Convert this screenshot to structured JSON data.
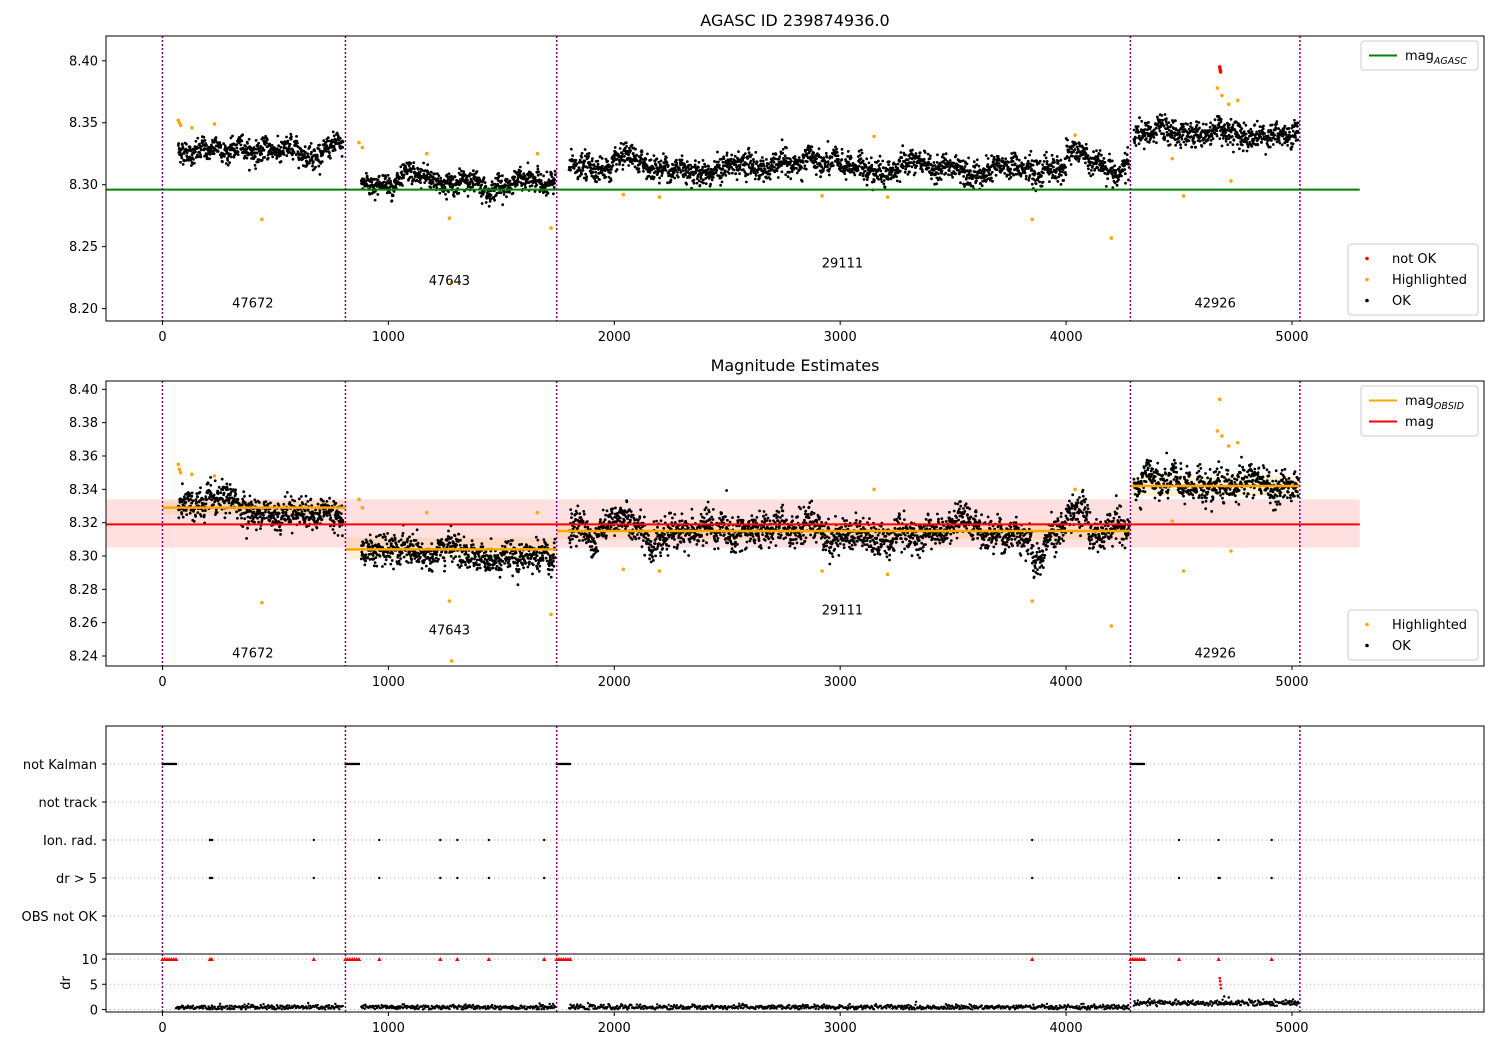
{
  "chart_data": [
    {
      "type": "scatter",
      "title": "AGASC ID 239874936.0",
      "xlim": [
        -250,
        5850
      ],
      "ylim": [
        8.19,
        8.42
      ],
      "xticks": [
        0,
        1000,
        2000,
        3000,
        4000,
        5000
      ],
      "yticks": [
        8.2,
        8.25,
        8.3,
        8.35,
        8.4
      ],
      "obsid_boundaries": [
        0,
        810,
        1745,
        4285,
        5035
      ],
      "obsid_labels": [
        {
          "label": "47672",
          "x": 400,
          "y": 8.201
        },
        {
          "label": "47643",
          "x": 1270,
          "y": 8.219
        },
        {
          "label": "29111",
          "x": 3010,
          "y": 8.233
        },
        {
          "label": "42926",
          "x": 4660,
          "y": 8.201
        }
      ],
      "reference_lines": [
        {
          "name": "mag_AGASC",
          "color": "#008000",
          "y": 8.296,
          "x": [
            -250,
            5300
          ]
        }
      ],
      "segments": [
        {
          "x": [
            70,
            800
          ],
          "level": 8.328,
          "spread": 0.006
        },
        {
          "x": [
            880,
            1740
          ],
          "level": 8.302,
          "spread": 0.006
        },
        {
          "x": [
            1800,
            4280
          ],
          "level": 8.314,
          "spread": 0.007
        },
        {
          "x": [
            4300,
            5030
          ],
          "level": 8.341,
          "spread": 0.007
        }
      ],
      "highlighted_points": [
        [
          70,
          8.352
        ],
        [
          75,
          8.35
        ],
        [
          80,
          8.348
        ],
        [
          130,
          8.346
        ],
        [
          230,
          8.349
        ],
        [
          440,
          8.272
        ],
        [
          870,
          8.334
        ],
        [
          885,
          8.33
        ],
        [
          1170,
          8.325
        ],
        [
          1270,
          8.273
        ],
        [
          1280,
          8.221
        ],
        [
          1660,
          8.325
        ],
        [
          1720,
          8.265
        ],
        [
          2040,
          8.292
        ],
        [
          2200,
          8.29
        ],
        [
          2920,
          8.291
        ],
        [
          3150,
          8.339
        ],
        [
          3210,
          8.29
        ],
        [
          3850,
          8.272
        ],
        [
          4040,
          8.34
        ],
        [
          4200,
          8.257
        ],
        [
          4470,
          8.321
        ],
        [
          4520,
          8.291
        ],
        [
          4670,
          8.378
        ],
        [
          4690,
          8.372
        ],
        [
          4720,
          8.365
        ],
        [
          4730,
          8.303
        ],
        [
          4760,
          8.368
        ]
      ],
      "not_ok_points": [
        [
          4680,
          8.395
        ],
        [
          4682,
          8.393
        ],
        [
          4684,
          8.391
        ]
      ],
      "legends": [
        {
          "position": "top-right",
          "items": [
            {
              "label": "mag",
              "sub": "AGASC",
              "color": "#008000",
              "kind": "line"
            }
          ]
        },
        {
          "position": "bottom-right",
          "items": [
            {
              "label": "not OK",
              "color": "#ff0000",
              "kind": "dot"
            },
            {
              "label": "Highlighted",
              "color": "#ffa500",
              "kind": "dot"
            },
            {
              "label": "OK",
              "color": "#000000",
              "kind": "dot"
            }
          ]
        }
      ]
    },
    {
      "type": "scatter",
      "title": "Magnitude Estimates",
      "xlim": [
        -250,
        5850
      ],
      "ylim": [
        8.234,
        8.405
      ],
      "xticks": [
        0,
        1000,
        2000,
        3000,
        4000,
        5000
      ],
      "yticks": [
        8.24,
        8.26,
        8.28,
        8.3,
        8.32,
        8.34,
        8.36,
        8.38,
        8.4
      ],
      "obsid_boundaries": [
        0,
        810,
        1745,
        4285,
        5035
      ],
      "obsid_labels": [
        {
          "label": "47672",
          "x": 400,
          "y": 8.239
        },
        {
          "label": "47643",
          "x": 1270,
          "y": 8.253
        },
        {
          "label": "29111",
          "x": 3010,
          "y": 8.265
        },
        {
          "label": "42926",
          "x": 4660,
          "y": 8.239
        }
      ],
      "reference_lines": [
        {
          "name": "mag",
          "color": "#ff0000",
          "y": 8.319,
          "x": [
            -250,
            5300
          ],
          "band": [
            8.305,
            8.334
          ]
        }
      ],
      "obsid_means": [
        {
          "x": [
            0,
            810
          ],
          "y": 8.329,
          "band": [
            8.325,
            8.333
          ]
        },
        {
          "x": [
            810,
            1745
          ],
          "y": 8.304,
          "band": [
            8.298,
            8.311
          ]
        },
        {
          "x": [
            1745,
            4285
          ],
          "y": 8.315,
          "band": [
            8.31,
            8.32
          ]
        },
        {
          "x": [
            4285,
            5035
          ],
          "y": 8.342,
          "band": [
            8.336,
            8.348
          ]
        }
      ],
      "segments": [
        {
          "x": [
            70,
            800
          ],
          "level": 8.328,
          "spread": 0.006
        },
        {
          "x": [
            880,
            1740
          ],
          "level": 8.302,
          "spread": 0.006
        },
        {
          "x": [
            1800,
            4280
          ],
          "level": 8.314,
          "spread": 0.007
        },
        {
          "x": [
            4300,
            5030
          ],
          "level": 8.341,
          "spread": 0.007
        }
      ],
      "highlighted_points": [
        [
          70,
          8.355
        ],
        [
          75,
          8.352
        ],
        [
          80,
          8.35
        ],
        [
          130,
          8.349
        ],
        [
          230,
          8.348
        ],
        [
          440,
          8.272
        ],
        [
          870,
          8.334
        ],
        [
          885,
          8.329
        ],
        [
          1170,
          8.326
        ],
        [
          1270,
          8.273
        ],
        [
          1280,
          8.237
        ],
        [
          1660,
          8.326
        ],
        [
          1720,
          8.265
        ],
        [
          2040,
          8.292
        ],
        [
          2200,
          8.291
        ],
        [
          2920,
          8.291
        ],
        [
          3150,
          8.34
        ],
        [
          3210,
          8.289
        ],
        [
          3850,
          8.273
        ],
        [
          4040,
          8.34
        ],
        [
          4200,
          8.258
        ],
        [
          4470,
          8.321
        ],
        [
          4520,
          8.291
        ],
        [
          4680,
          8.394
        ],
        [
          4670,
          8.375
        ],
        [
          4690,
          8.372
        ],
        [
          4720,
          8.366
        ],
        [
          4730,
          8.303
        ],
        [
          4760,
          8.368
        ]
      ],
      "legends": [
        {
          "position": "top-right",
          "items": [
            {
              "label": "mag",
              "sub": "OBSID",
              "color": "#ffa500",
              "kind": "line"
            },
            {
              "label": "mag",
              "sub": "",
              "color": "#ff0000",
              "kind": "line"
            }
          ]
        },
        {
          "position": "bottom-right",
          "items": [
            {
              "label": "Highlighted",
              "color": "#ffa500",
              "kind": "dot"
            },
            {
              "label": "OK",
              "color": "#000000",
              "kind": "dot"
            }
          ]
        }
      ]
    },
    {
      "type": "scatter",
      "xlim": [
        -250,
        5850
      ],
      "xticks": [
        0,
        1000,
        2000,
        3000,
        4000,
        5000
      ],
      "obsid_boundaries": [
        0,
        810,
        1745,
        4285,
        5035
      ],
      "flag_rows": [
        {
          "label": "not Kalman",
          "points": [
            [
              0,
              60
            ],
            [
              810,
              870
            ],
            [
              1745,
              1805
            ],
            [
              4285,
              4345
            ]
          ]
        },
        {
          "label": "not track",
          "points": []
        },
        {
          "label": "Ion. rad.",
          "points": [
            [
              210,
              220
            ],
            [
              670,
              670
            ],
            [
              960,
              960
            ],
            [
              1230,
              1230
            ],
            [
              1305,
              1305
            ],
            [
              1445,
              1445
            ],
            [
              1690,
              1690
            ],
            [
              3850,
              3850
            ],
            [
              4500,
              4500
            ],
            [
              4675,
              4675
            ],
            [
              4910,
              4910
            ]
          ]
        },
        {
          "label": "dr > 5",
          "points": [
            [
              210,
              220
            ],
            [
              670,
              670
            ],
            [
              960,
              960
            ],
            [
              1230,
              1230
            ],
            [
              1305,
              1305
            ],
            [
              1445,
              1445
            ],
            [
              1690,
              1690
            ],
            [
              3850,
              3850
            ],
            [
              4500,
              4500
            ],
            [
              4675,
              4680
            ],
            [
              4910,
              4910
            ]
          ]
        },
        {
          "label": "OBS not OK",
          "points": []
        }
      ],
      "dr": {
        "ylabel": "dr",
        "yticks": [
          0,
          5,
          10
        ],
        "ylim": [
          -0.5,
          11
        ],
        "clip_markers_x": [
          0,
          10,
          20,
          30,
          40,
          50,
          60,
          210,
          218,
          670,
          810,
          820,
          830,
          840,
          850,
          860,
          870,
          960,
          1230,
          1305,
          1445,
          1690,
          1745,
          1755,
          1765,
          1775,
          1785,
          1795,
          1805,
          3850,
          4285,
          4295,
          4305,
          4315,
          4325,
          4335,
          4345,
          4500,
          4675,
          4910
        ],
        "outliers": [
          [
            4680,
            6.2
          ],
          [
            4682,
            5.6
          ],
          [
            4684,
            4.9
          ],
          [
            4686,
            4.2
          ],
          [
            4370,
            2.1
          ],
          [
            4700,
            2.6
          ],
          [
            4720,
            2.4
          ]
        ]
      }
    }
  ]
}
